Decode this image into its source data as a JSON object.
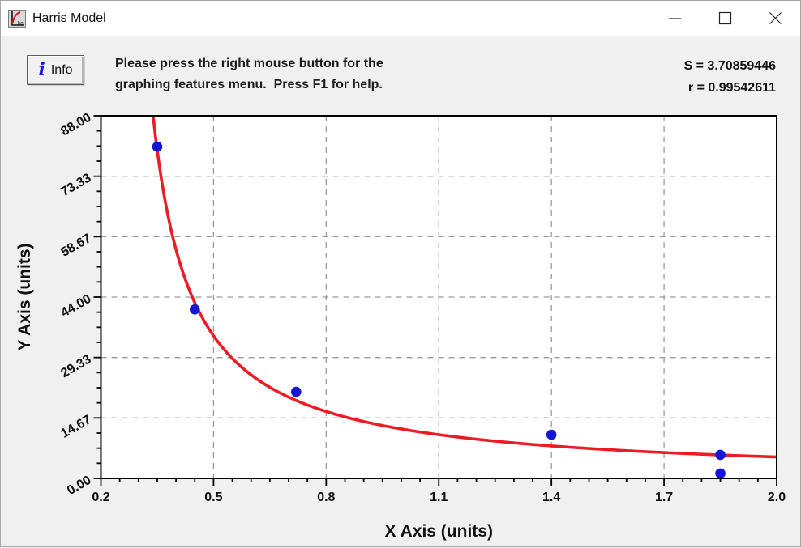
{
  "window": {
    "title": "Harris Model",
    "icon_text": "kc"
  },
  "toolbar": {
    "info_label": "Info",
    "info_icon_glyph": "i",
    "instructions_line1": "Please press the right mouse button for the",
    "instructions_line2": "graphing features menu.  Press F1 for help."
  },
  "stats": {
    "s_text": "S = 3.70859446",
    "r_text": "r = 0.99542611",
    "s_value": "3.70859446",
    "r_value": "0.99542611"
  },
  "chart_data": {
    "type": "scatter",
    "title": "",
    "xlabel": "X Axis (units)",
    "ylabel": "Y Axis (units)",
    "xlim": [
      0.2,
      2.0
    ],
    "ylim": [
      0.0,
      88.0
    ],
    "x_ticks": [
      0.2,
      0.5,
      0.8,
      1.1,
      1.4,
      1.7,
      2.0
    ],
    "x_tick_labels": [
      "0.2",
      "0.5",
      "0.8",
      "1.1",
      "1.4",
      "1.7",
      "2.0"
    ],
    "y_ticks": [
      0.0,
      14.67,
      29.33,
      44.0,
      58.67,
      73.33,
      88.0
    ],
    "y_tick_labels": [
      "0.00",
      "14.67",
      "29.33",
      "44.00",
      "58.67",
      "73.33",
      "88.00"
    ],
    "x_minor_step": 0.05,
    "y_minor_per_major": 4,
    "grid": "dashed gridlines at interior major ticks",
    "legend": "none",
    "points": [
      [
        0.35,
        80.5
      ],
      [
        0.45,
        41.0
      ],
      [
        0.72,
        21.0
      ],
      [
        1.4,
        10.6
      ],
      [
        1.85,
        5.7
      ],
      [
        1.85,
        1.2
      ]
    ],
    "fit_curve": {
      "model": "Harris model: y = 1/(a + b*x^c)",
      "a": -0.02557,
      "b": 0.10895,
      "c": 1.0,
      "x_range": [
        0.3,
        2.0
      ]
    },
    "colors": {
      "curve": "#ed1c24",
      "points": "#1515d3",
      "grid": "#9a9a9a",
      "axis": "#000000",
      "plot_bg": "#ffffff"
    }
  }
}
